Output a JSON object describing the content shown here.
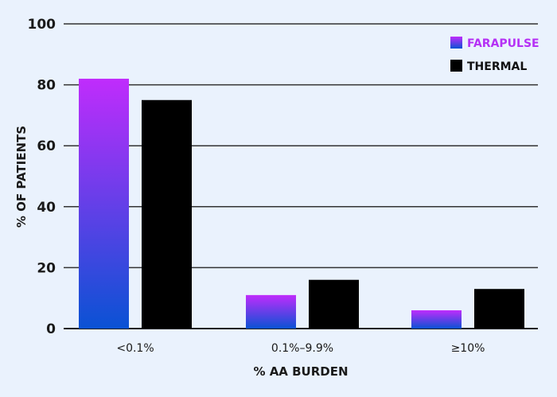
{
  "chart_data": {
    "type": "bar",
    "xlabel": "% AA BURDEN",
    "ylabel": "% OF PATIENTS",
    "categories": [
      "<0.1%",
      "0.1%–9.9%",
      "≥10%"
    ],
    "ylim": [
      0,
      100
    ],
    "yticks": [
      "0",
      "20",
      "40",
      "60",
      "80",
      "100"
    ],
    "grid": true,
    "legend_position": "top-right",
    "series": [
      {
        "name": "FARAPULSE",
        "values": [
          82,
          11,
          6
        ],
        "color_top": "#c02cfc",
        "color_bottom": "#0a52d4"
      },
      {
        "name": "THERMAL",
        "values": [
          75,
          16,
          13
        ],
        "color": "#000000"
      }
    ],
    "legend_text_colors": {
      "FARAPULSE": "#b531f5",
      "THERMAL": "#111111"
    }
  }
}
